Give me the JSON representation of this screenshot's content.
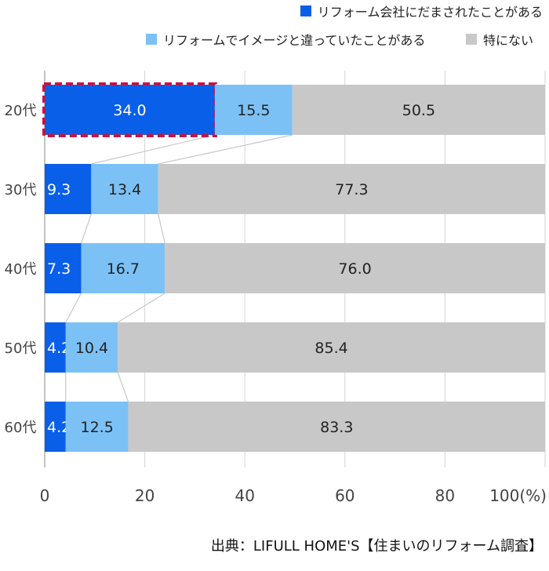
{
  "chart_data": {
    "type": "bar",
    "orientation": "horizontal",
    "stacked": true,
    "categories": [
      "20代",
      "30代",
      "40代",
      "50代",
      "60代"
    ],
    "series": [
      {
        "name": "リフォーム会社にだまされたことがある",
        "color": "#0a5fe8",
        "label_color": "#ffffff",
        "values": [
          34.0,
          9.3,
          7.3,
          4.2,
          4.2
        ]
      },
      {
        "name": "リフォームでイメージと違っていたことがある",
        "color": "#7cc1f5",
        "label_color": "#222222",
        "values": [
          15.5,
          13.4,
          16.7,
          10.4,
          12.5
        ]
      },
      {
        "name": "特にない",
        "color": "#c8c8c8",
        "label_color": "#222222",
        "values": [
          50.5,
          77.3,
          76.0,
          85.4,
          83.3
        ]
      }
    ],
    "x_ticks": [
      "0",
      "20",
      "40",
      "60",
      "80",
      "100(%)"
    ],
    "xlim": [
      0,
      100
    ],
    "grid": true,
    "legend_position": "top-right",
    "highlight": {
      "category": "20代",
      "series": "リフォーム会社にだまされたことがある",
      "color": "#c0154a"
    }
  },
  "source": "出典：LIFULL HOME'S【住まいのリフォーム調査】"
}
